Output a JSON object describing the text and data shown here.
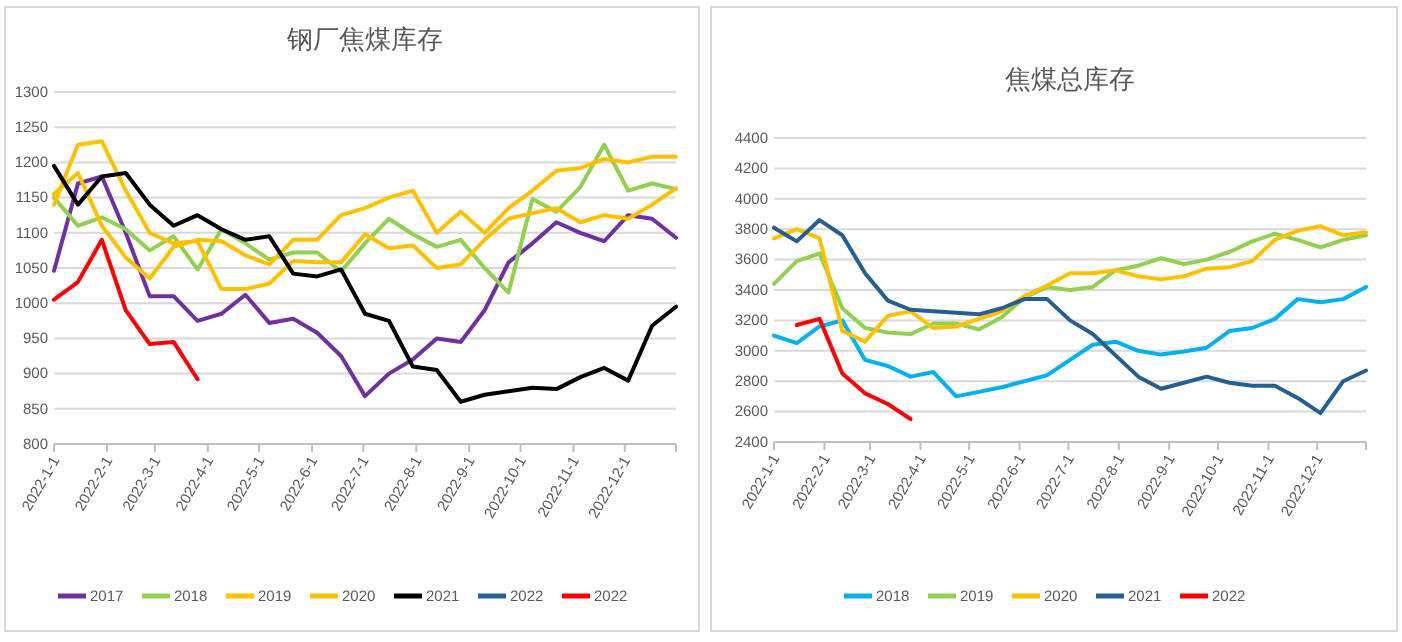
{
  "chart_data": [
    {
      "type": "line",
      "title": "钢厂焦煤库存",
      "grid": "y",
      "legend": "bottom",
      "x": [
        "2022-01-01",
        "2022-01-15",
        "2022-01-29",
        "2022-02-12",
        "2022-02-26",
        "2022-03-12",
        "2022-03-26",
        "2022-04-09",
        "2022-04-23",
        "2022-05-07",
        "2022-05-21",
        "2022-06-04",
        "2022-06-18",
        "2022-07-02",
        "2022-07-16",
        "2022-07-30",
        "2022-08-13",
        "2022-08-27",
        "2022-09-10",
        "2022-09-24",
        "2022-10-08",
        "2022-10-22",
        "2022-11-05",
        "2022-11-19",
        "2022-12-03",
        "2022-12-17",
        "2022-12-31"
      ],
      "xlim": [
        "2022-01-01",
        "2022-12-31"
      ],
      "xticks": [
        {
          "value": "2022-01-01",
          "label": "2022-1-1"
        },
        {
          "value": "2022-02-01",
          "label": "2022-2-1"
        },
        {
          "value": "2022-03-01",
          "label": "2022-3-1"
        },
        {
          "value": "2022-04-01",
          "label": "2022-4-1"
        },
        {
          "value": "2022-05-01",
          "label": "2022-5-1"
        },
        {
          "value": "2022-06-01",
          "label": "2022-6-1"
        },
        {
          "value": "2022-07-01",
          "label": "2022-7-1"
        },
        {
          "value": "2022-08-01",
          "label": "2022-8-1"
        },
        {
          "value": "2022-09-01",
          "label": "2022-9-1"
        },
        {
          "value": "2022-10-01",
          "label": "2022-10-1"
        },
        {
          "value": "2022-11-01",
          "label": "2022-11-1"
        },
        {
          "value": "2022-12-01",
          "label": "2022-12-1"
        }
      ],
      "ylim": [
        800,
        1300
      ],
      "yticks": [
        800,
        850,
        900,
        950,
        1000,
        1050,
        1100,
        1150,
        1200,
        1250,
        1300
      ],
      "series": [
        {
          "name": "2017",
          "color": "#7030a0",
          "values": [
            1046,
            1170,
            1180,
            1100,
            1010,
            1010,
            975,
            985,
            1012,
            972,
            978,
            958,
            925,
            868,
            900,
            920,
            950,
            945,
            990,
            1058,
            1085,
            1115,
            1100,
            1088,
            1125,
            1120,
            1093
          ]
        },
        {
          "name": "2018",
          "color": "#92d050",
          "values": [
            1150,
            1110,
            1122,
            1105,
            1075,
            1095,
            1048,
            1105,
            1085,
            1062,
            1072,
            1072,
            1045,
            1085,
            1120,
            1098,
            1080,
            1090,
            1050,
            1015,
            1148,
            1130,
            1165,
            1225,
            1160,
            1170,
            1162
          ]
        },
        {
          "name": "2019",
          "color": "#ffc000",
          "values": [
            1140,
            1225,
            1230,
            1160,
            1100,
            1085,
            1088,
            1020,
            1020,
            1028,
            1060,
            1058,
            1058,
            1098,
            1078,
            1082,
            1050,
            1055,
            1090,
            1120,
            1128,
            1135,
            1115,
            1125,
            1120,
            1140,
            1163
          ]
        },
        {
          "name": "2020",
          "color": "#ffc000",
          "values": [
            1155,
            1185,
            1110,
            1065,
            1035,
            1080,
            1090,
            1088,
            1068,
            1055,
            1090,
            1090,
            1125,
            1135,
            1150,
            1160,
            1100,
            1130,
            1100,
            1135,
            1160,
            1188,
            1192,
            1205,
            1200,
            1208,
            1208
          ]
        },
        {
          "name": "2021",
          "color": "#000000",
          "values": [
            1195,
            1140,
            1180,
            1185,
            1140,
            1110,
            1125,
            1105,
            1090,
            1095,
            1042,
            1038,
            1048,
            985,
            975,
            910,
            905,
            860,
            870,
            875,
            880,
            878,
            895,
            908,
            890,
            968,
            995
          ]
        },
        {
          "name": "2022",
          "color": "#255e91",
          "values": [
            null,
            null,
            null,
            null,
            null,
            null,
            null,
            null,
            null,
            null,
            null,
            null,
            null,
            null,
            null,
            null,
            null,
            null,
            null,
            null,
            null,
            null,
            null,
            null,
            null,
            null,
            null
          ]
        },
        {
          "name": "2022",
          "color": "#ff0000",
          "values": [
            1005,
            1030,
            1090,
            990,
            942,
            945,
            892,
            null,
            null,
            null,
            null,
            null,
            null,
            null,
            null,
            null,
            null,
            null,
            null,
            null,
            null,
            null,
            null,
            null,
            null,
            null,
            null
          ]
        }
      ]
    },
    {
      "type": "line",
      "title": "焦煤总库存",
      "grid": "y",
      "legend": "bottom",
      "x": [
        "2022-01-01",
        "2022-01-15",
        "2022-01-29",
        "2022-02-12",
        "2022-02-26",
        "2022-03-12",
        "2022-03-26",
        "2022-04-09",
        "2022-04-23",
        "2022-05-07",
        "2022-05-21",
        "2022-06-04",
        "2022-06-18",
        "2022-07-02",
        "2022-07-16",
        "2022-07-30",
        "2022-08-13",
        "2022-08-27",
        "2022-09-10",
        "2022-09-24",
        "2022-10-08",
        "2022-10-22",
        "2022-11-05",
        "2022-11-19",
        "2022-12-03",
        "2022-12-17",
        "2022-12-31"
      ],
      "xlim": [
        "2022-01-01",
        "2022-12-31"
      ],
      "xticks": [
        {
          "value": "2022-01-01",
          "label": "2022-1-1"
        },
        {
          "value": "2022-02-01",
          "label": "2022-2-1"
        },
        {
          "value": "2022-03-01",
          "label": "2022-3-1"
        },
        {
          "value": "2022-04-01",
          "label": "2022-4-1"
        },
        {
          "value": "2022-05-01",
          "label": "2022-5-1"
        },
        {
          "value": "2022-06-01",
          "label": "2022-6-1"
        },
        {
          "value": "2022-07-01",
          "label": "2022-7-1"
        },
        {
          "value": "2022-08-01",
          "label": "2022-8-1"
        },
        {
          "value": "2022-09-01",
          "label": "2022-9-1"
        },
        {
          "value": "2022-10-01",
          "label": "2022-10-1"
        },
        {
          "value": "2022-11-01",
          "label": "2022-11-1"
        },
        {
          "value": "2022-12-01",
          "label": "2022-12-1"
        }
      ],
      "ylim": [
        2400,
        4400
      ],
      "yticks": [
        2400,
        2600,
        2800,
        3000,
        3200,
        3400,
        3600,
        3800,
        4000,
        4200,
        4400
      ],
      "series": [
        {
          "name": "2018",
          "color": "#00b0f0",
          "values": [
            3100,
            3050,
            3160,
            3200,
            2940,
            2900,
            2830,
            2860,
            2700,
            2730,
            2760,
            2800,
            2840,
            2940,
            3040,
            3060,
            3000,
            2975,
            2995,
            3020,
            3130,
            3150,
            3210,
            3340,
            3320,
            3340,
            3420
          ]
        },
        {
          "name": "2019",
          "color": "#92d050",
          "values": [
            3440,
            3590,
            3640,
            3280,
            3150,
            3120,
            3110,
            3180,
            3180,
            3140,
            3220,
            3350,
            3420,
            3400,
            3420,
            3530,
            3560,
            3610,
            3570,
            3600,
            3650,
            3720,
            3770,
            3730,
            3680,
            3730,
            3760
          ]
        },
        {
          "name": "2020",
          "color": "#ffc000",
          "values": [
            3740,
            3800,
            3740,
            3130,
            3060,
            3230,
            3260,
            3150,
            3160,
            3210,
            3260,
            3360,
            3430,
            3510,
            3510,
            3530,
            3490,
            3470,
            3490,
            3540,
            3550,
            3590,
            3730,
            3790,
            3820,
            3760,
            3780
          ]
        },
        {
          "name": "2021",
          "color": "#255e91",
          "values": [
            3810,
            3720,
            3860,
            3760,
            3510,
            3330,
            3270,
            3260,
            3250,
            3240,
            3280,
            3340,
            3340,
            3200,
            3110,
            2970,
            2830,
            2750,
            2790,
            2830,
            2790,
            2770,
            2770,
            2690,
            2590,
            2800,
            2870
          ]
        },
        {
          "name": "2022",
          "color": "#ff0000",
          "values": [
            null,
            3170,
            3210,
            2850,
            2720,
            2650,
            2550,
            null,
            null,
            null,
            null,
            null,
            null,
            null,
            null,
            null,
            null,
            null,
            null,
            null,
            null,
            null,
            null,
            null,
            null,
            null,
            null
          ]
        }
      ]
    }
  ]
}
